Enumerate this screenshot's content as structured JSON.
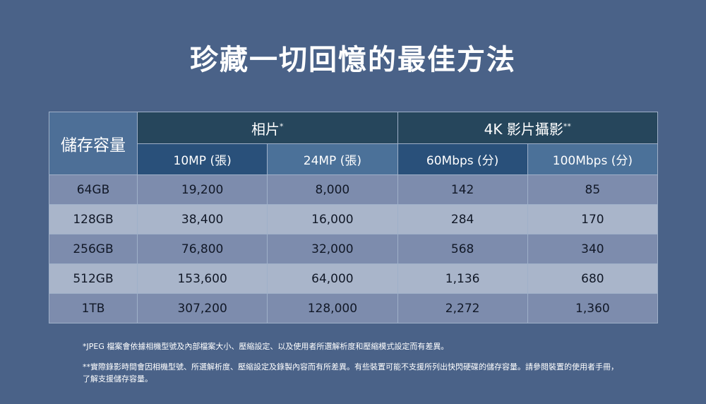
{
  "title": "珍藏一切回憶的最佳方法",
  "table": {
    "storage_header": "儲存容量",
    "groups": [
      {
        "label": "相片",
        "mark": "*"
      },
      {
        "label": "4K 影片攝影",
        "mark": "**"
      }
    ],
    "subheaders": [
      "10MP (張)",
      "24MP (張)",
      "60Mbps (分)",
      "100Mbps (分)"
    ],
    "rows": [
      {
        "capacity": "64GB",
        "values": [
          "19,200",
          "8,000",
          "142",
          "85"
        ]
      },
      {
        "capacity": "128GB",
        "values": [
          "38,400",
          "16,000",
          "284",
          "170"
        ]
      },
      {
        "capacity": "256GB",
        "values": [
          "76,800",
          "32,000",
          "568",
          "340"
        ]
      },
      {
        "capacity": "512GB",
        "values": [
          "153,600",
          "64,000",
          "1,136",
          "680"
        ]
      },
      {
        "capacity": "1TB",
        "values": [
          "307,200",
          "128,000",
          "2,272",
          "1,360"
        ]
      }
    ]
  },
  "footnotes": [
    "*JPEG 檔案會依據相機型號及內部檔案大小、壓縮設定、以及使用者所選解析度和壓縮模式設定而有差異。",
    "**實際錄影時間會因相機型號、所選解析度、壓縮設定及錄製內容而有所差異。有些裝置可能不支援所列出快閃硬碟的儲存容量。請參閱裝置的使用者手冊，了解支援儲存容量。"
  ]
}
